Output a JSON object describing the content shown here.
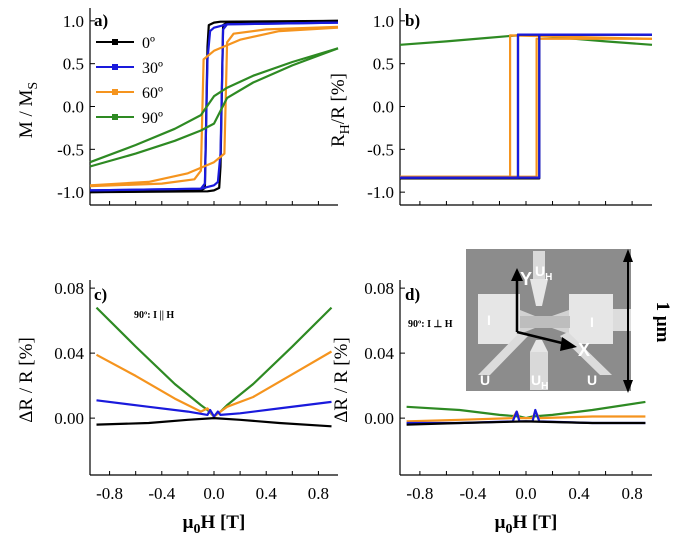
{
  "colors": {
    "0": "#000000",
    "30": "#1a1adc",
    "60": "#f5941e",
    "90": "#2e8a23"
  },
  "chart_data": [
    {
      "id": "a",
      "type": "line",
      "panel_label": "a)",
      "ylabel_main": "M / M",
      "ylabel_sub": "S",
      "xlim": [
        -0.95,
        0.95
      ],
      "ylim": [
        -1.15,
        1.15
      ],
      "yticks": [
        -1.0,
        -0.5,
        0.0,
        0.5,
        1.0
      ],
      "ytick_labels": [
        "-1.0",
        "-0.5",
        "0.0",
        "0.5",
        "1.0"
      ],
      "legend": {
        "position": "top-left",
        "entries": [
          {
            "label": "0º",
            "color_key": "0"
          },
          {
            "label": "30º",
            "color_key": "30"
          },
          {
            "label": "60º",
            "color_key": "60"
          },
          {
            "label": "90º",
            "color_key": "90"
          }
        ]
      },
      "series": [
        {
          "name": "0º",
          "color_key": "0",
          "x": [
            -0.95,
            -0.1,
            -0.07,
            -0.05,
            -0.04,
            0.0,
            0.05,
            0.95
          ],
          "y": [
            -1.0,
            -0.98,
            -0.95,
            0.7,
            0.95,
            0.98,
            0.99,
            1.0
          ]
        },
        {
          "color_key": "0",
          "x": [
            0.95,
            0.1,
            0.07,
            0.05,
            0.04,
            0.0,
            -0.05,
            -0.95
          ],
          "y": [
            1.0,
            0.98,
            0.95,
            -0.7,
            -0.95,
            -0.98,
            -0.99,
            -1.0
          ]
        },
        {
          "name": "30º",
          "color_key": "30",
          "x": [
            -0.95,
            -0.1,
            -0.07,
            -0.05,
            -0.03,
            0.0,
            0.1,
            0.95
          ],
          "y": [
            -0.98,
            -0.96,
            -0.9,
            0.55,
            0.88,
            0.92,
            0.96,
            0.98
          ]
        },
        {
          "color_key": "30",
          "x": [
            0.95,
            0.1,
            0.07,
            0.05,
            0.03,
            0.0,
            -0.1,
            -0.95
          ],
          "y": [
            0.98,
            0.96,
            0.9,
            -0.55,
            -0.88,
            -0.92,
            -0.96,
            -0.98
          ]
        },
        {
          "name": "60º",
          "color_key": "60",
          "x": [
            -0.95,
            -0.4,
            -0.15,
            -0.1,
            -0.08,
            0.0,
            0.2,
            0.5,
            0.95
          ],
          "y": [
            -0.93,
            -0.9,
            -0.85,
            -0.75,
            0.55,
            0.65,
            0.78,
            0.88,
            0.92
          ]
        },
        {
          "color_key": "60",
          "x": [
            0.95,
            0.4,
            0.15,
            0.1,
            0.08,
            0.0,
            -0.2,
            -0.5,
            -0.95
          ],
          "y": [
            0.93,
            0.9,
            0.85,
            0.75,
            -0.55,
            -0.65,
            -0.78,
            -0.88,
            -0.92
          ]
        },
        {
          "name": "90º",
          "color_key": "90",
          "x": [
            -0.95,
            -0.6,
            -0.3,
            -0.1,
            0.0,
            0.1,
            0.3,
            0.6,
            0.95
          ],
          "y": [
            -0.7,
            -0.55,
            -0.4,
            -0.28,
            -0.2,
            0.1,
            0.28,
            0.48,
            0.68
          ]
        },
        {
          "color_key": "90",
          "x": [
            0.95,
            0.6,
            0.3,
            0.1,
            0.0,
            -0.1,
            -0.3,
            -0.6,
            -0.95
          ],
          "y": [
            0.68,
            0.52,
            0.36,
            0.22,
            0.12,
            -0.1,
            -0.26,
            -0.45,
            -0.65
          ]
        }
      ]
    },
    {
      "id": "b",
      "type": "line",
      "panel_label": "b)",
      "ylabel_main": "R",
      "ylabel_sub": "H",
      "ylabel_rest": "/R [%]",
      "xlim": [
        -0.95,
        0.95
      ],
      "ylim": [
        -1.15,
        1.15
      ],
      "yticks": [
        -1.0,
        -0.5,
        0.0,
        0.5,
        1.0
      ],
      "ytick_labels": [
        "-1.0",
        "-0.5",
        "0.0",
        "0.5",
        "1.0"
      ],
      "series": [
        {
          "name": "90º",
          "color_key": "90",
          "x": [
            -0.95,
            -0.6,
            -0.3,
            0.0,
            0.3,
            0.6,
            0.95
          ],
          "y": [
            0.72,
            0.76,
            0.8,
            0.84,
            0.8,
            0.76,
            0.72
          ]
        },
        {
          "name": "60º",
          "color_key": "60",
          "x": [
            -0.95,
            -0.12,
            -0.12,
            0.95
          ],
          "y": [
            -0.82,
            -0.82,
            0.83,
            0.79
          ]
        },
        {
          "color_key": "60",
          "x": [
            0.95,
            0.08,
            0.08,
            -0.95
          ],
          "y": [
            0.79,
            0.79,
            -0.82,
            -0.82
          ]
        },
        {
          "name": "0º",
          "color_key": "0",
          "x": [
            -0.95,
            -0.06,
            -0.06,
            0.95
          ],
          "y": [
            -0.84,
            -0.84,
            0.84,
            0.84
          ]
        },
        {
          "color_key": "0",
          "x": [
            0.95,
            0.1,
            0.1,
            -0.95
          ],
          "y": [
            0.84,
            0.84,
            -0.84,
            -0.84
          ]
        },
        {
          "name": "30º",
          "color_key": "30",
          "x": [
            -0.95,
            -0.06,
            -0.06,
            0.95
          ],
          "y": [
            -0.83,
            -0.83,
            0.84,
            0.84
          ]
        },
        {
          "color_key": "30",
          "x": [
            0.95,
            0.1,
            0.1,
            -0.95
          ],
          "y": [
            0.84,
            0.84,
            -0.83,
            -0.83
          ]
        }
      ]
    },
    {
      "id": "c",
      "type": "line",
      "panel_label": "c)",
      "annotation": "90º: I || H",
      "ylabel_main": "ΔR / R [%]",
      "xlabel_main": "μ",
      "xlabel_sub": "0",
      "xlabel_rest": "H [T]",
      "xlim": [
        -0.95,
        0.95
      ],
      "ylim": [
        -0.035,
        0.085
      ],
      "xticks": [
        -0.8,
        -0.4,
        0.0,
        0.4,
        0.8
      ],
      "xtick_labels": [
        "-0.8",
        "-0.4",
        "0.0",
        "0.4",
        "0.8"
      ],
      "yticks": [
        0.0,
        0.04,
        0.08
      ],
      "ytick_labels": [
        "0.00",
        "0.04",
        "0.08"
      ],
      "series": [
        {
          "name": "90º",
          "color_key": "90",
          "x": [
            -0.9,
            -0.6,
            -0.3,
            -0.1,
            -0.05,
            0.0,
            0.05,
            0.1,
            0.3,
            0.6,
            0.9
          ],
          "y": [
            0.068,
            0.044,
            0.021,
            0.008,
            0.005,
            0.001,
            0.004,
            0.008,
            0.021,
            0.044,
            0.068
          ]
        },
        {
          "name": "60º",
          "color_key": "60",
          "x": [
            -0.9,
            -0.6,
            -0.3,
            -0.1,
            -0.05,
            0.0,
            0.05,
            0.1,
            0.3,
            0.6,
            0.9
          ],
          "y": [
            0.039,
            0.026,
            0.012,
            0.004,
            0.006,
            0.001,
            0.004,
            0.007,
            0.013,
            0.027,
            0.041
          ]
        },
        {
          "name": "30º",
          "color_key": "30",
          "x": [
            -0.9,
            -0.5,
            -0.2,
            -0.05,
            -0.03,
            0.0,
            0.03,
            0.05,
            0.2,
            0.5,
            0.9
          ],
          "y": [
            0.011,
            0.007,
            0.004,
            0.002,
            0.005,
            0.001,
            0.004,
            0.002,
            0.003,
            0.006,
            0.01
          ]
        },
        {
          "name": "0º",
          "color_key": "0",
          "x": [
            -0.9,
            -0.5,
            -0.2,
            0.0,
            0.2,
            0.5,
            0.9
          ],
          "y": [
            -0.004,
            -0.003,
            -0.001,
            0.0,
            -0.001,
            -0.003,
            -0.005
          ]
        }
      ]
    },
    {
      "id": "d",
      "type": "line",
      "panel_label": "d)",
      "annotation": "90º: I ⊥ H",
      "ylabel_main": "ΔR / R [%]",
      "xlabel_main": "μ",
      "xlabel_sub": "0",
      "xlabel_rest": "H [T]",
      "xlim": [
        -0.95,
        0.95
      ],
      "ylim": [
        -0.035,
        0.085
      ],
      "xticks": [
        -0.8,
        -0.4,
        0.0,
        0.4,
        0.8
      ],
      "xtick_labels": [
        "-0.8",
        "-0.4",
        "0.0",
        "0.4",
        "0.8"
      ],
      "yticks": [
        0.0,
        0.04,
        0.08
      ],
      "ytick_labels": [
        "0.00",
        "0.04",
        "0.08"
      ],
      "series": [
        {
          "name": "90º",
          "color_key": "90",
          "x": [
            -0.9,
            -0.5,
            -0.2,
            -0.05,
            0.0,
            0.05,
            0.2,
            0.5,
            0.9
          ],
          "y": [
            0.007,
            0.005,
            0.002,
            0.001,
            0.0,
            0.001,
            0.002,
            0.005,
            0.01
          ]
        },
        {
          "name": "60º",
          "color_key": "60",
          "x": [
            -0.9,
            -0.5,
            -0.1,
            -0.07,
            -0.05,
            0.0,
            0.05,
            0.07,
            0.1,
            0.5,
            0.9
          ],
          "y": [
            -0.002,
            -0.001,
            0.0,
            0.004,
            0.0,
            0.0,
            0.0,
            0.004,
            0.0,
            0.001,
            0.001
          ]
        },
        {
          "name": "30º",
          "color_key": "30",
          "x": [
            -0.9,
            -0.5,
            -0.1,
            -0.07,
            -0.05,
            0.0,
            0.05,
            0.07,
            0.1,
            0.5,
            0.9
          ],
          "y": [
            -0.003,
            -0.003,
            -0.002,
            0.004,
            -0.002,
            -0.002,
            -0.002,
            0.005,
            -0.002,
            -0.003,
            -0.003
          ]
        },
        {
          "name": "0º",
          "color_key": "0",
          "x": [
            -0.9,
            -0.5,
            0.0,
            0.5,
            0.9
          ],
          "y": [
            -0.004,
            -0.003,
            -0.002,
            -0.003,
            -0.003
          ]
        }
      ]
    }
  ],
  "inset": {
    "labels": {
      "u_h_top": "U",
      "u_h_bottom": "U",
      "u_h_sub": "H",
      "i_left": "I",
      "i_right": "I",
      "u_left": "U",
      "u_right": "U",
      "axis_x": "X",
      "axis_y": "Y"
    },
    "scale_label": "1 μm"
  }
}
